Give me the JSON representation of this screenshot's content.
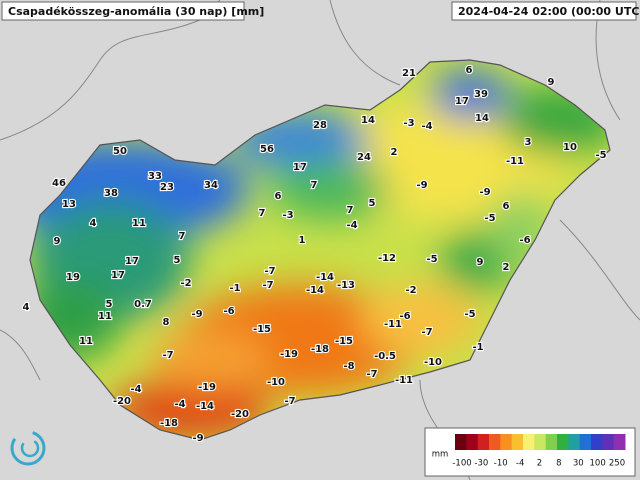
{
  "header": {
    "title": "Csapadékösszeg-anomália (30 nap) [mm]",
    "timestamp": "2024-04-24 02:00 (00:00 UTC)"
  },
  "stations": [
    50,
    46,
    38,
    33,
    23,
    34,
    13,
    4,
    11,
    9,
    7,
    19,
    17,
    17,
    5,
    5,
    0.7,
    11,
    4,
    11,
    8,
    -9,
    -2,
    -1,
    -6,
    -7,
    -7,
    1,
    6,
    -3,
    7,
    7,
    17,
    56,
    28,
    14,
    24,
    2,
    7,
    5,
    -4,
    -3,
    -4,
    21,
    6,
    17,
    39,
    14,
    9,
    3,
    -11,
    10,
    -5,
    -9,
    -9,
    6,
    -5,
    -6,
    9,
    2,
    -5,
    -12,
    -14,
    -13,
    -14,
    -2,
    -6,
    -11,
    -7,
    -5,
    -1,
    -15,
    -15,
    -19,
    -18,
    -7,
    -4,
    -19,
    -10,
    -8,
    -7,
    -0.5,
    -10,
    -11,
    -20,
    -4,
    -14,
    -20,
    -7,
    -18,
    -9
  ],
  "legend": {
    "unit": "mm",
    "labels": [
      -100,
      -30,
      -10,
      -4,
      2,
      8,
      30,
      100,
      250
    ]
  }
}
